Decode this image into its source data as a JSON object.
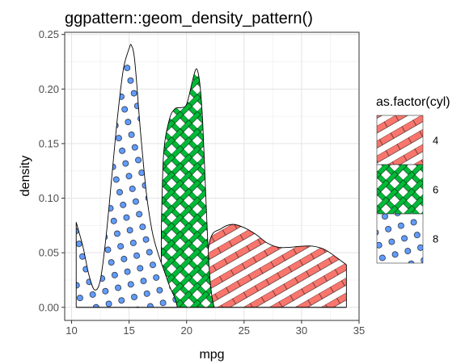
{
  "chart_data": {
    "type": "area",
    "title": "ggpattern::geom_density_pattern()",
    "xlabel": "mpg",
    "ylabel": "density",
    "xlim": [
      9.4,
      35
    ],
    "ylim": [
      -0.012,
      0.252
    ],
    "x_ticks": [
      10,
      15,
      20,
      25,
      30,
      35
    ],
    "y_ticks": [
      0.0,
      0.05,
      0.1,
      0.15,
      0.2,
      0.25
    ],
    "x_tick_labels": [
      "10",
      "15",
      "20",
      "25",
      "30",
      "35"
    ],
    "y_tick_labels": [
      "0.00",
      "0.05",
      "0.10",
      "0.15",
      "0.20",
      "0.25"
    ],
    "grid": true,
    "legend_title": "as.factor(cyl)",
    "legend_position": "right",
    "series": [
      {
        "name": "4",
        "pattern": "stripe",
        "fill_color": "#F8766D",
        "x": [
          21.4,
          22,
          23,
          24,
          25,
          26,
          27,
          28,
          29,
          30,
          31,
          32,
          33,
          33.9
        ],
        "y": [
          0.0,
          0.06,
          0.072,
          0.076,
          0.073,
          0.067,
          0.059,
          0.055,
          0.055,
          0.056,
          0.056,
          0.053,
          0.046,
          0.039
        ]
      },
      {
        "name": "6",
        "pattern": "crosshatch",
        "fill_color": "#00BA38",
        "x": [
          17.8,
          18.0,
          18.5,
          19.0,
          19.5,
          20.0,
          20.5,
          20.8,
          21.0,
          21.2,
          21.4,
          21.6,
          21.8,
          22.0,
          22.2,
          22.4
        ],
        "y": [
          0.07,
          0.14,
          0.172,
          0.182,
          0.183,
          0.186,
          0.207,
          0.218,
          0.215,
          0.2,
          0.17,
          0.12,
          0.07,
          0.03,
          0.01,
          0.0
        ]
      },
      {
        "name": "8",
        "pattern": "circle",
        "fill_color": "#619CFF",
        "x": [
          10.4,
          11.0,
          11.5,
          12.0,
          12.5,
          13.0,
          13.5,
          14.0,
          14.5,
          15.0,
          15.2,
          15.5,
          16.0,
          16.5,
          17.0,
          17.5,
          18.0,
          18.5,
          19.0,
          19.2
        ],
        "y": [
          0.078,
          0.055,
          0.03,
          0.016,
          0.025,
          0.065,
          0.12,
          0.175,
          0.218,
          0.237,
          0.24,
          0.225,
          0.16,
          0.105,
          0.07,
          0.05,
          0.035,
          0.02,
          0.008,
          0.0
        ]
      }
    ]
  }
}
